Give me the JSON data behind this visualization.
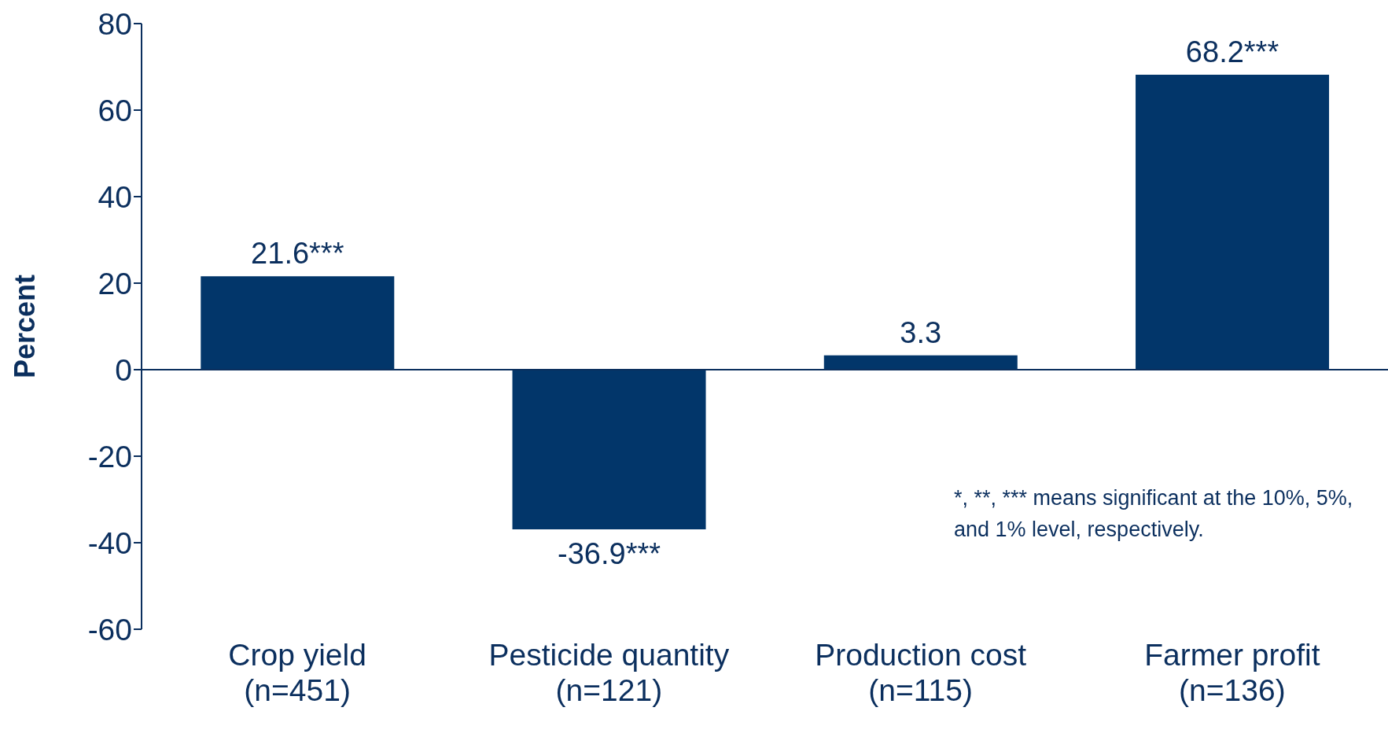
{
  "chart_data": {
    "type": "bar",
    "categories": [
      "Crop yield\n(n=451)",
      "Pesticide quantity\n(n=121)",
      "Production cost\n(n=115)",
      "Farmer profit\n(n=136)"
    ],
    "values": [
      21.6,
      -36.9,
      3.3,
      68.2
    ],
    "value_labels": [
      "21.6***",
      "-36.9***",
      "3.3",
      "68.2***"
    ],
    "color": "#02366a",
    "ylabel": "Percent",
    "ylim": [
      -60,
      80
    ],
    "yticks": [
      -60,
      -40,
      -20,
      0,
      20,
      40,
      60,
      80
    ],
    "grid": false,
    "legend": false,
    "annotations": [
      "*, **, *** means significant at the 10%, 5%, and 1% level, respectively."
    ]
  }
}
